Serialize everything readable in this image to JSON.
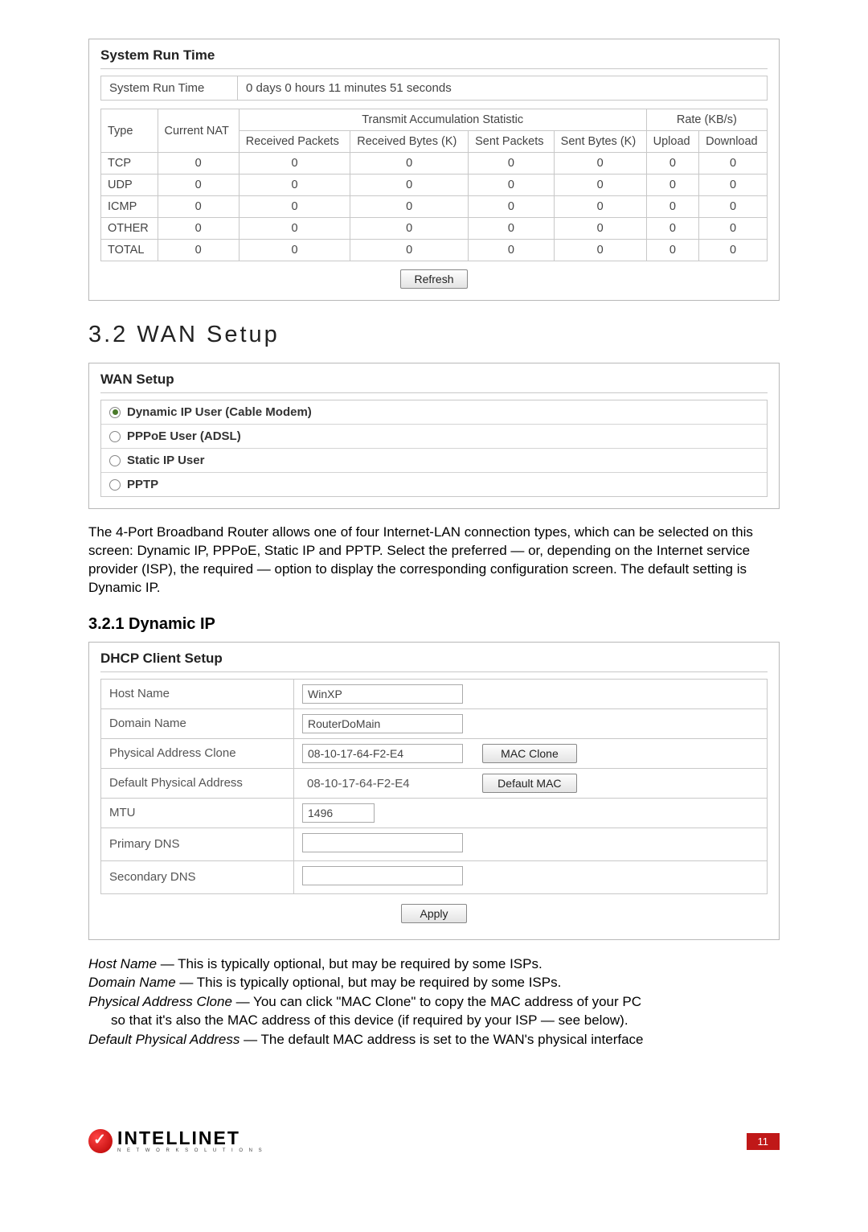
{
  "system_run_time": {
    "panel_title": "System Run Time",
    "label": "System Run Time",
    "value": "0 days  0 hours  11 minutes  51 seconds",
    "header_group1": "Transmit Accumulation Statistic",
    "header_group2": "Rate (KB/s)",
    "cols": {
      "type": "Type",
      "current_nat": "Current NAT",
      "rx_packets": "Received Packets",
      "rx_bytes": "Received Bytes (K)",
      "tx_packets": "Sent Packets",
      "tx_bytes": "Sent Bytes (K)",
      "upload": "Upload",
      "download": "Download"
    },
    "rows": [
      {
        "type": "TCP",
        "nat": "0",
        "rp": "0",
        "rb": "0",
        "sp": "0",
        "sb": "0",
        "up": "0",
        "dn": "0"
      },
      {
        "type": "UDP",
        "nat": "0",
        "rp": "0",
        "rb": "0",
        "sp": "0",
        "sb": "0",
        "up": "0",
        "dn": "0"
      },
      {
        "type": "ICMP",
        "nat": "0",
        "rp": "0",
        "rb": "0",
        "sp": "0",
        "sb": "0",
        "up": "0",
        "dn": "0"
      },
      {
        "type": "OTHER",
        "nat": "0",
        "rp": "0",
        "rb": "0",
        "sp": "0",
        "sb": "0",
        "up": "0",
        "dn": "0"
      },
      {
        "type": "TOTAL",
        "nat": "0",
        "rp": "0",
        "rb": "0",
        "sp": "0",
        "sb": "0",
        "up": "0",
        "dn": "0"
      }
    ],
    "refresh_btn": "Refresh"
  },
  "section_heading": "3.2  WAN Setup",
  "wan_setup": {
    "panel_title": "WAN Setup",
    "options": [
      {
        "label": "Dynamic IP User (Cable Modem)",
        "selected": true
      },
      {
        "label": "PPPoE User (ADSL)",
        "selected": false
      },
      {
        "label": "Static IP User",
        "selected": false
      },
      {
        "label": "PPTP",
        "selected": false
      }
    ]
  },
  "paragraph": "The 4-Port Broadband Router allows one of four Internet-LAN connection types, which can be selected on this screen: Dynamic IP,  PPPoE, Static IP and PPTP. Select the preferred — or, depending on the Internet service provider (ISP), the required — option to display the corresponding configuration screen. The default setting is Dynamic IP.",
  "subsection_heading": "3.2.1  Dynamic IP",
  "dhcp": {
    "panel_title": "DHCP Client Setup",
    "rows": {
      "host_name": {
        "label": "Host Name",
        "value": "WinXP"
      },
      "domain_name": {
        "label": "Domain Name",
        "value": "RouterDoMain"
      },
      "phys_clone": {
        "label": "Physical Address Clone",
        "value": "08-10-17-64-F2-E4",
        "btn": "MAC  Clone"
      },
      "default_phys": {
        "label": "Default Physical Address",
        "value": "08-10-17-64-F2-E4",
        "btn": "Default MAC"
      },
      "mtu": {
        "label": "MTU",
        "value": "1496"
      },
      "primary_dns": {
        "label": "Primary DNS",
        "value": ""
      },
      "secondary_dns": {
        "label": "Secondary DNS",
        "value": ""
      }
    },
    "apply_btn": "Apply"
  },
  "descriptions": {
    "host_name_term": "Host Name",
    "host_name_text": " — This is typically optional, but may be required by some ISPs.",
    "domain_name_term": "Domain Name",
    "domain_name_text": " — This is typically optional, but may be required by some ISPs.",
    "phys_clone_term": "Physical Address Clone",
    "phys_clone_text": " — You can click \"MAC Clone\" to copy the MAC address of your PC",
    "phys_clone_text2": "so that it's also the MAC address of this device (if required by your ISP — see below).",
    "default_phys_term": "Default Physical Address",
    "default_phys_text": " — The default MAC address is set to the WAN's physical interface"
  },
  "footer": {
    "brand": "INTELLINET",
    "brand_sub": "N E T W O R K   S O L U T I O N S",
    "page_num": "11"
  }
}
